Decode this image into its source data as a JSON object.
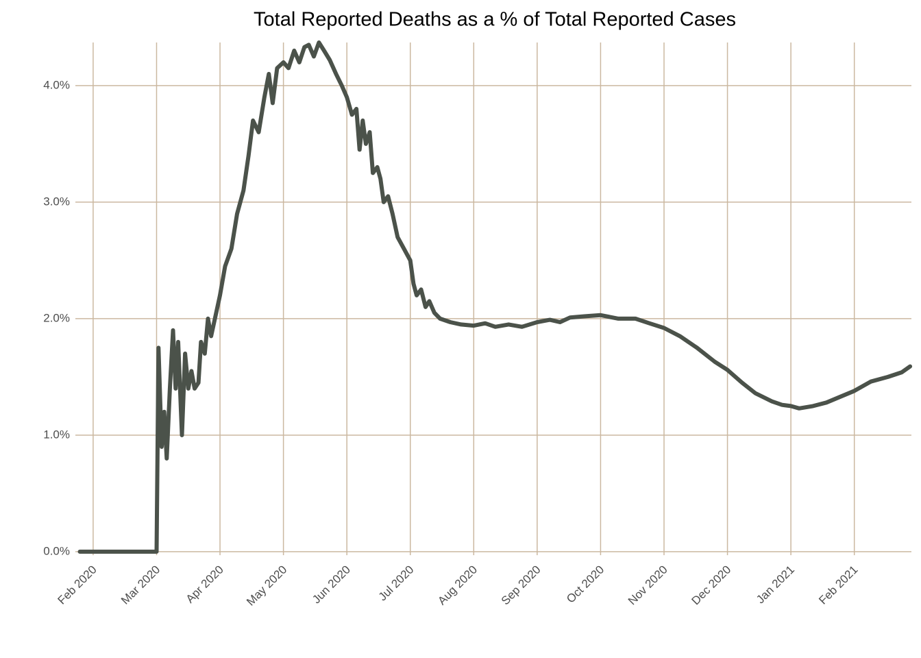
{
  "chart_data": {
    "type": "line",
    "title": "Total Reported Deaths as a % of Total Reported Cases",
    "x": [
      0.79,
      1.8,
      2.0,
      2.03,
      2.08,
      2.12,
      2.16,
      2.21,
      2.26,
      2.3,
      2.34,
      2.4,
      2.45,
      2.5,
      2.55,
      2.6,
      2.66,
      2.7,
      2.76,
      2.81,
      2.86,
      3.0,
      3.08,
      3.18,
      3.27,
      3.37,
      3.45,
      3.52,
      3.61,
      3.7,
      3.77,
      3.83,
      3.9,
      4.0,
      4.08,
      4.17,
      4.25,
      4.33,
      4.4,
      4.48,
      4.56,
      4.64,
      4.73,
      4.83,
      4.92,
      5.0,
      5.08,
      5.15,
      5.2,
      5.25,
      5.3,
      5.36,
      5.41,
      5.48,
      5.53,
      5.58,
      5.65,
      5.72,
      5.8,
      5.9,
      6.0,
      6.05,
      6.1,
      6.17,
      6.24,
      6.3,
      6.38,
      6.47,
      6.63,
      6.8,
      7.0,
      7.18,
      7.34,
      7.55,
      7.76,
      8.0,
      8.2,
      8.36,
      8.52,
      8.74,
      9.0,
      9.28,
      9.55,
      9.77,
      10.0,
      10.25,
      10.52,
      10.8,
      11.0,
      11.23,
      11.44,
      11.7,
      11.86,
      12.0,
      12.13,
      12.35,
      12.56,
      12.78,
      13.0,
      13.26,
      13.53,
      13.75,
      13.88
    ],
    "series": [
      {
        "color": "#4b524a",
        "values": [
          0,
          0,
          0,
          1.75,
          0.9,
          1.2,
          0.8,
          1.4,
          1.9,
          1.4,
          1.8,
          1.0,
          1.7,
          1.4,
          1.55,
          1.4,
          1.45,
          1.8,
          1.7,
          2.0,
          1.85,
          2.2,
          2.45,
          2.6,
          2.9,
          3.1,
          3.4,
          3.7,
          3.6,
          3.9,
          4.1,
          3.85,
          4.15,
          4.2,
          4.15,
          4.3,
          4.2,
          4.33,
          4.35,
          4.25,
          4.37,
          4.3,
          4.22,
          4.1,
          4.0,
          3.9,
          3.75,
          3.8,
          3.45,
          3.7,
          3.5,
          3.6,
          3.25,
          3.3,
          3.2,
          3.0,
          3.05,
          2.9,
          2.7,
          2.6,
          2.5,
          2.3,
          2.2,
          2.25,
          2.1,
          2.15,
          2.05,
          2.0,
          1.97,
          1.95,
          1.94,
          1.96,
          1.93,
          1.95,
          1.93,
          1.97,
          1.99,
          1.97,
          2.01,
          2.02,
          2.03,
          2.0,
          2.0,
          1.96,
          1.92,
          1.85,
          1.75,
          1.63,
          1.56,
          1.45,
          1.36,
          1.29,
          1.26,
          1.25,
          1.23,
          1.25,
          1.28,
          1.33,
          1.38,
          1.46,
          1.5,
          1.54,
          1.59
        ]
      }
    ],
    "xlim": [
      0.72,
      13.9
    ],
    "xticks": [
      {
        "value": 1,
        "label": "Feb 2020"
      },
      {
        "value": 2,
        "label": "Mar 2020"
      },
      {
        "value": 3,
        "label": "Apr 2020"
      },
      {
        "value": 4,
        "label": "May 2020"
      },
      {
        "value": 5,
        "label": "Jun 2020"
      },
      {
        "value": 6,
        "label": "Jul 2020"
      },
      {
        "value": 7,
        "label": "Aug 2020"
      },
      {
        "value": 8,
        "label": "Sep 2020"
      },
      {
        "value": 9,
        "label": "Oct 2020"
      },
      {
        "value": 10,
        "label": "Nov 2020"
      },
      {
        "value": 11,
        "label": "Dec 2020"
      },
      {
        "value": 12,
        "label": "Jan 2021"
      },
      {
        "value": 13,
        "label": "Feb 2021"
      }
    ],
    "ylim": [
      -0.03,
      4.37
    ],
    "yticks": [
      {
        "value": 0,
        "label": "0.0%"
      },
      {
        "value": 1,
        "label": "1.0%"
      },
      {
        "value": 2,
        "label": "2.0%"
      },
      {
        "value": 3,
        "label": "3.0%"
      },
      {
        "value": 4,
        "label": "4.0%"
      }
    ],
    "grid": true,
    "grid_color": "#cbb8a0"
  }
}
